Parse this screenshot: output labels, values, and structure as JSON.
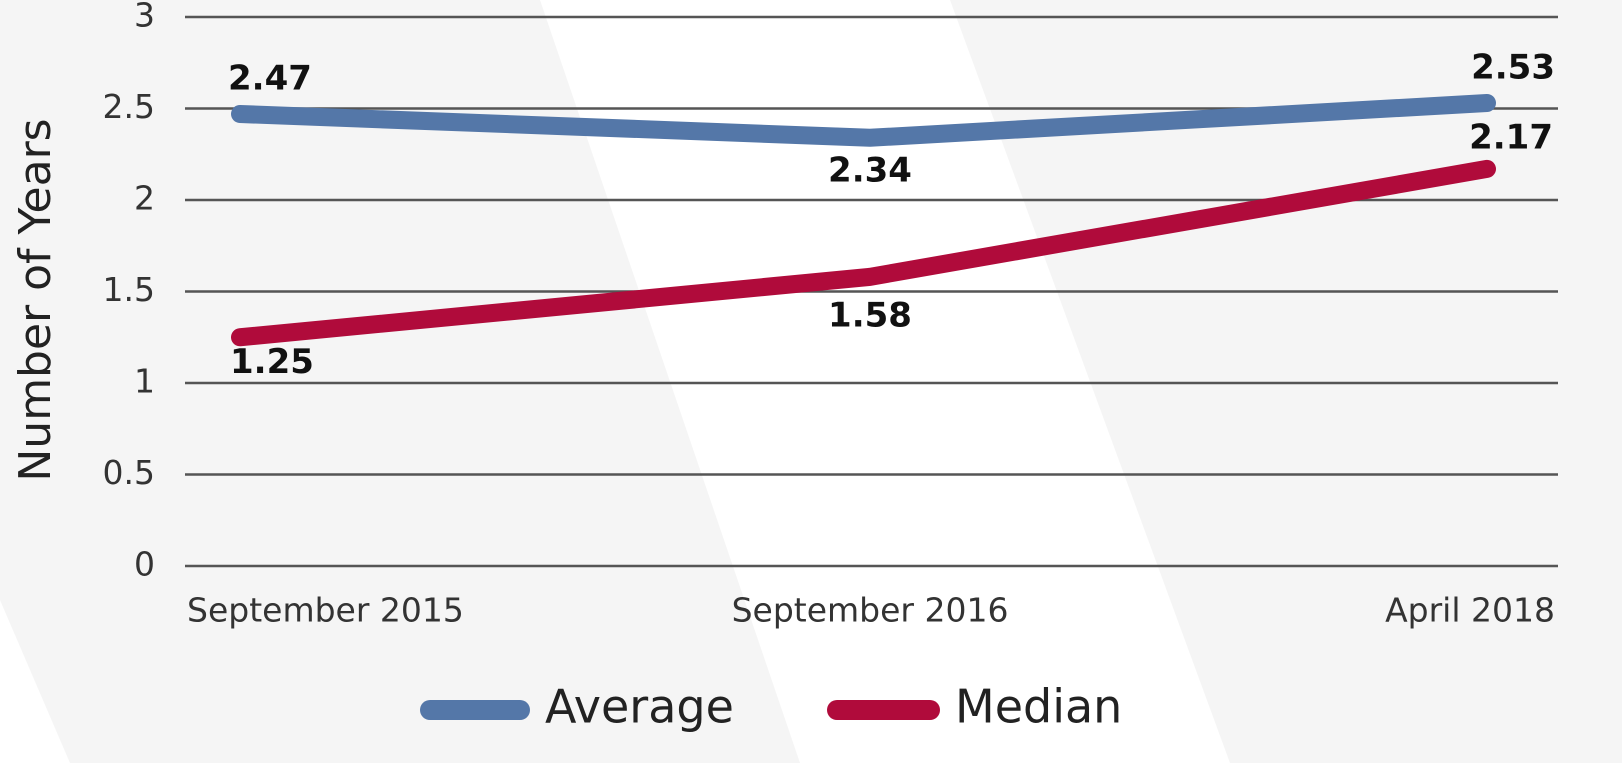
{
  "chart_data": {
    "type": "line",
    "y_label": "Number of Years",
    "categories": [
      "September 2015",
      "September 2016",
      "April 2018"
    ],
    "series": [
      {
        "name": "Average",
        "color": "#5477a8",
        "values": [
          2.47,
          2.34,
          2.53
        ]
      },
      {
        "name": "Median",
        "color": "#b00b3b",
        "values": [
          1.25,
          1.58,
          2.17
        ]
      }
    ],
    "ylim": [
      0,
      3
    ],
    "yticks": [
      0,
      0.5,
      1,
      1.5,
      2,
      2.5,
      3
    ],
    "grid": true,
    "legend": "bottom"
  }
}
